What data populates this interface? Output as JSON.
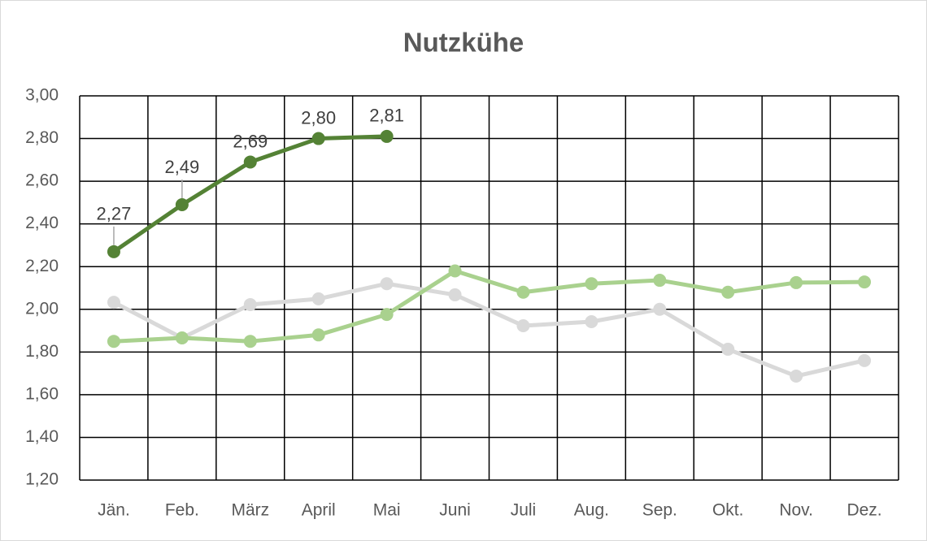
{
  "chart_data": {
    "type": "line",
    "title": "Nutzkühe",
    "categories": [
      "Jän.",
      "Feb.",
      "März",
      "April",
      "Mai",
      "Juni",
      "Juli",
      "Aug.",
      "Sep.",
      "Okt.",
      "Nov.",
      "Dez."
    ],
    "series": [
      {
        "color": "#d9d9d9",
        "values": [
          2.033,
          1.866,
          2.022,
          2.049,
          2.12,
          2.068,
          1.923,
          1.942,
          2.0,
          1.813,
          1.687,
          1.76
        ]
      },
      {
        "color": "#a9d18e",
        "values": [
          1.85,
          1.866,
          1.85,
          1.88,
          1.976,
          2.18,
          2.08,
          2.12,
          2.136,
          2.08,
          2.125,
          2.128
        ]
      },
      {
        "color": "#548235",
        "values": [
          2.27,
          2.49,
          2.69,
          2.8,
          2.81,
          null,
          null,
          null,
          null,
          null,
          null,
          null
        ],
        "value_labels": [
          "2,27",
          "2,49",
          "2,69",
          "2,80",
          "2,81",
          null,
          null,
          null,
          null,
          null,
          null,
          null
        ]
      }
    ],
    "ylim": [
      1.2,
      3.0
    ],
    "yticks": [
      {
        "value": 1.2,
        "label": "1,20"
      },
      {
        "value": 1.4,
        "label": "1,40"
      },
      {
        "value": 1.6,
        "label": "1,60"
      },
      {
        "value": 1.8,
        "label": "1,80"
      },
      {
        "value": 2.0,
        "label": "2,00"
      },
      {
        "value": 2.2,
        "label": "2,20"
      },
      {
        "value": 2.4,
        "label": "2,40"
      },
      {
        "value": 2.6,
        "label": "2,60"
      },
      {
        "value": 2.8,
        "label": "2,80"
      },
      {
        "value": 3.0,
        "label": "3,00"
      }
    ],
    "grid": true
  }
}
